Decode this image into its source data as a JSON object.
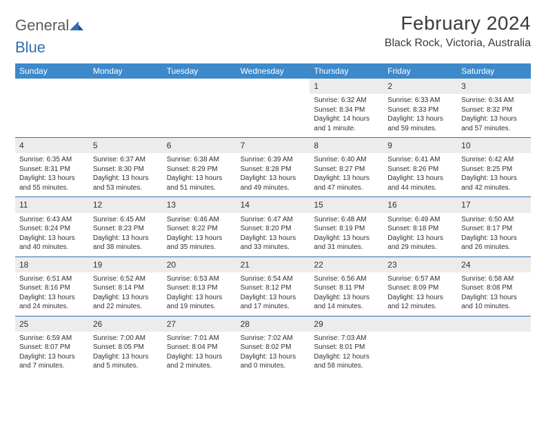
{
  "logo": {
    "part1": "General",
    "part2": "Blue"
  },
  "title": "February 2024",
  "location": "Black Rock, Victoria, Australia",
  "colors": {
    "header_bg": "#3d89c9",
    "header_text": "#ffffff",
    "daynum_bg": "#ececec",
    "week_border": "#2f6fb0",
    "logo_gray": "#5a5a5a",
    "logo_blue": "#2f6fb0"
  },
  "day_names": [
    "Sunday",
    "Monday",
    "Tuesday",
    "Wednesday",
    "Thursday",
    "Friday",
    "Saturday"
  ],
  "weeks": [
    [
      {
        "n": "",
        "sr": "",
        "ss": "",
        "dl": ""
      },
      {
        "n": "",
        "sr": "",
        "ss": "",
        "dl": ""
      },
      {
        "n": "",
        "sr": "",
        "ss": "",
        "dl": ""
      },
      {
        "n": "",
        "sr": "",
        "ss": "",
        "dl": ""
      },
      {
        "n": "1",
        "sr": "Sunrise: 6:32 AM",
        "ss": "Sunset: 8:34 PM",
        "dl": "Daylight: 14 hours and 1 minute."
      },
      {
        "n": "2",
        "sr": "Sunrise: 6:33 AM",
        "ss": "Sunset: 8:33 PM",
        "dl": "Daylight: 13 hours and 59 minutes."
      },
      {
        "n": "3",
        "sr": "Sunrise: 6:34 AM",
        "ss": "Sunset: 8:32 PM",
        "dl": "Daylight: 13 hours and 57 minutes."
      }
    ],
    [
      {
        "n": "4",
        "sr": "Sunrise: 6:35 AM",
        "ss": "Sunset: 8:31 PM",
        "dl": "Daylight: 13 hours and 55 minutes."
      },
      {
        "n": "5",
        "sr": "Sunrise: 6:37 AM",
        "ss": "Sunset: 8:30 PM",
        "dl": "Daylight: 13 hours and 53 minutes."
      },
      {
        "n": "6",
        "sr": "Sunrise: 6:38 AM",
        "ss": "Sunset: 8:29 PM",
        "dl": "Daylight: 13 hours and 51 minutes."
      },
      {
        "n": "7",
        "sr": "Sunrise: 6:39 AM",
        "ss": "Sunset: 8:28 PM",
        "dl": "Daylight: 13 hours and 49 minutes."
      },
      {
        "n": "8",
        "sr": "Sunrise: 6:40 AM",
        "ss": "Sunset: 8:27 PM",
        "dl": "Daylight: 13 hours and 47 minutes."
      },
      {
        "n": "9",
        "sr": "Sunrise: 6:41 AM",
        "ss": "Sunset: 8:26 PM",
        "dl": "Daylight: 13 hours and 44 minutes."
      },
      {
        "n": "10",
        "sr": "Sunrise: 6:42 AM",
        "ss": "Sunset: 8:25 PM",
        "dl": "Daylight: 13 hours and 42 minutes."
      }
    ],
    [
      {
        "n": "11",
        "sr": "Sunrise: 6:43 AM",
        "ss": "Sunset: 8:24 PM",
        "dl": "Daylight: 13 hours and 40 minutes."
      },
      {
        "n": "12",
        "sr": "Sunrise: 6:45 AM",
        "ss": "Sunset: 8:23 PM",
        "dl": "Daylight: 13 hours and 38 minutes."
      },
      {
        "n": "13",
        "sr": "Sunrise: 6:46 AM",
        "ss": "Sunset: 8:22 PM",
        "dl": "Daylight: 13 hours and 35 minutes."
      },
      {
        "n": "14",
        "sr": "Sunrise: 6:47 AM",
        "ss": "Sunset: 8:20 PM",
        "dl": "Daylight: 13 hours and 33 minutes."
      },
      {
        "n": "15",
        "sr": "Sunrise: 6:48 AM",
        "ss": "Sunset: 8:19 PM",
        "dl": "Daylight: 13 hours and 31 minutes."
      },
      {
        "n": "16",
        "sr": "Sunrise: 6:49 AM",
        "ss": "Sunset: 8:18 PM",
        "dl": "Daylight: 13 hours and 29 minutes."
      },
      {
        "n": "17",
        "sr": "Sunrise: 6:50 AM",
        "ss": "Sunset: 8:17 PM",
        "dl": "Daylight: 13 hours and 26 minutes."
      }
    ],
    [
      {
        "n": "18",
        "sr": "Sunrise: 6:51 AM",
        "ss": "Sunset: 8:16 PM",
        "dl": "Daylight: 13 hours and 24 minutes."
      },
      {
        "n": "19",
        "sr": "Sunrise: 6:52 AM",
        "ss": "Sunset: 8:14 PM",
        "dl": "Daylight: 13 hours and 22 minutes."
      },
      {
        "n": "20",
        "sr": "Sunrise: 6:53 AM",
        "ss": "Sunset: 8:13 PM",
        "dl": "Daylight: 13 hours and 19 minutes."
      },
      {
        "n": "21",
        "sr": "Sunrise: 6:54 AM",
        "ss": "Sunset: 8:12 PM",
        "dl": "Daylight: 13 hours and 17 minutes."
      },
      {
        "n": "22",
        "sr": "Sunrise: 6:56 AM",
        "ss": "Sunset: 8:11 PM",
        "dl": "Daylight: 13 hours and 14 minutes."
      },
      {
        "n": "23",
        "sr": "Sunrise: 6:57 AM",
        "ss": "Sunset: 8:09 PM",
        "dl": "Daylight: 13 hours and 12 minutes."
      },
      {
        "n": "24",
        "sr": "Sunrise: 6:58 AM",
        "ss": "Sunset: 8:08 PM",
        "dl": "Daylight: 13 hours and 10 minutes."
      }
    ],
    [
      {
        "n": "25",
        "sr": "Sunrise: 6:59 AM",
        "ss": "Sunset: 8:07 PM",
        "dl": "Daylight: 13 hours and 7 minutes."
      },
      {
        "n": "26",
        "sr": "Sunrise: 7:00 AM",
        "ss": "Sunset: 8:05 PM",
        "dl": "Daylight: 13 hours and 5 minutes."
      },
      {
        "n": "27",
        "sr": "Sunrise: 7:01 AM",
        "ss": "Sunset: 8:04 PM",
        "dl": "Daylight: 13 hours and 2 minutes."
      },
      {
        "n": "28",
        "sr": "Sunrise: 7:02 AM",
        "ss": "Sunset: 8:02 PM",
        "dl": "Daylight: 13 hours and 0 minutes."
      },
      {
        "n": "29",
        "sr": "Sunrise: 7:03 AM",
        "ss": "Sunset: 8:01 PM",
        "dl": "Daylight: 12 hours and 58 minutes."
      },
      {
        "n": "",
        "sr": "",
        "ss": "",
        "dl": ""
      },
      {
        "n": "",
        "sr": "",
        "ss": "",
        "dl": ""
      }
    ]
  ]
}
